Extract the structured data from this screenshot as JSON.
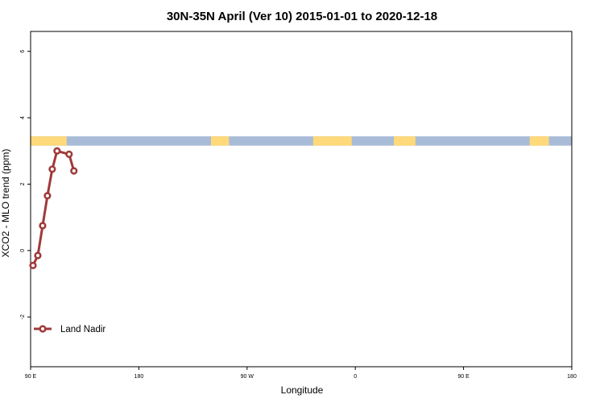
{
  "chart_data": {
    "type": "line",
    "title": "30N-35N April (Ver 10)   2015-01-01 to 2020-12-18",
    "xlabel": "Longitude",
    "ylabel": "XCO2 - MLO trend (ppm)",
    "xlim": [
      90,
      540
    ],
    "ylim": [
      -3.5,
      6.6
    ],
    "x_ticks": [
      {
        "value": 90,
        "label": "90 E"
      },
      {
        "value": 180,
        "label": "180"
      },
      {
        "value": 270,
        "label": "90 W"
      },
      {
        "value": 360,
        "label": "0"
      },
      {
        "value": 450,
        "label": "90 E"
      },
      {
        "value": 540,
        "label": "180"
      }
    ],
    "y_ticks": [
      {
        "value": -2,
        "label": "-2"
      },
      {
        "value": 0,
        "label": "0"
      },
      {
        "value": 2,
        "label": "2"
      },
      {
        "value": 4,
        "label": "4"
      },
      {
        "value": 6,
        "label": "6"
      }
    ],
    "landmask": {
      "y_center": 3.3,
      "band_height": 0.28,
      "land_color": "#FFD97A",
      "ocean_color": "#A8BCD8",
      "land_segments": [
        [
          90,
          120
        ],
        [
          240,
          255
        ],
        [
          325,
          357
        ],
        [
          392,
          410
        ],
        [
          505,
          521
        ]
      ]
    },
    "series": [
      {
        "name": "Land Nadir",
        "color": "#A03A3A",
        "x": [
          92,
          96,
          100,
          104,
          108,
          112,
          122,
          126,
          130,
          142,
          146,
          150,
          154,
          158,
          162,
          166,
          170,
          174,
          184,
          188,
          192,
          196,
          206,
          210,
          214,
          218,
          222,
          234,
          238,
          242,
          246,
          250,
          254,
          258,
          262,
          266,
          270,
          274,
          278,
          282,
          286,
          290,
          294,
          298,
          302,
          306,
          310,
          314,
          318,
          410,
          414,
          418,
          424,
          428,
          442,
          446,
          450,
          454,
          458,
          462,
          466,
          470,
          474,
          478,
          482,
          486,
          490,
          494,
          498,
          502,
          506,
          510,
          514,
          518,
          522,
          526,
          530,
          534,
          538
        ],
        "y": [
          -0.45,
          -0.15,
          0.75,
          1.65,
          2.45,
          3.0,
          2.9,
          2.4,
          null,
          null,
          null,
          null,
          null,
          null,
          null,
          null,
          null,
          null,
          null,
          null,
          null,
          null,
          null,
          null,
          null,
          null,
          null,
          null,
          null,
          null,
          null,
          null,
          null,
          null,
          null,
          null,
          null,
          null,
          null,
          null,
          null,
          null,
          null,
          null,
          null,
          null,
          null,
          null,
          null,
          null,
          null,
          null,
          null,
          null,
          null,
          null,
          null,
          null,
          null,
          null,
          null,
          null,
          null,
          null,
          null,
          null,
          null,
          null,
          null,
          null,
          null,
          null,
          null,
          null,
          null,
          null,
          null,
          null,
          null
        ]
      }
    ]
  }
}
